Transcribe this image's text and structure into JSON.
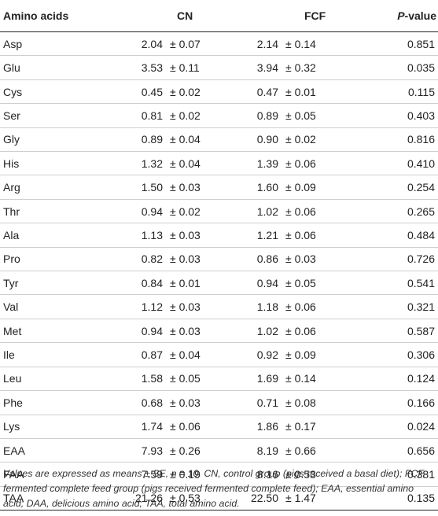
{
  "headers": {
    "amino": "Amino acids",
    "cn": "CN",
    "fcf": "FCF",
    "p_italic": "P",
    "p_rest": "-value"
  },
  "rows": [
    {
      "name": "Asp",
      "cn_mean": "2.04",
      "cn_se": "± 0.07",
      "fcf_mean": "2.14",
      "fcf_se": "± 0.14",
      "p": "0.851"
    },
    {
      "name": "Glu",
      "cn_mean": "3.53",
      "cn_se": "± 0.11",
      "fcf_mean": "3.94",
      "fcf_se": "± 0.32",
      "p": "0.035"
    },
    {
      "name": "Cys",
      "cn_mean": "0.45",
      "cn_se": "± 0.02",
      "fcf_mean": "0.47",
      "fcf_se": "± 0.01",
      "p": "0.115"
    },
    {
      "name": "Ser",
      "cn_mean": "0.81",
      "cn_se": "± 0.02",
      "fcf_mean": "0.89",
      "fcf_se": "± 0.05",
      "p": "0.403"
    },
    {
      "name": "Gly",
      "cn_mean": "0.89",
      "cn_se": "± 0.04",
      "fcf_mean": "0.90",
      "fcf_se": "± 0.02",
      "p": "0.816"
    },
    {
      "name": "His",
      "cn_mean": "1.32",
      "cn_se": "± 0.04",
      "fcf_mean": "1.39",
      "fcf_se": "± 0.06",
      "p": "0.410"
    },
    {
      "name": "Arg",
      "cn_mean": "1.50",
      "cn_se": "± 0.03",
      "fcf_mean": "1.60",
      "fcf_se": "± 0.09",
      "p": "0.254"
    },
    {
      "name": "Thr",
      "cn_mean": "0.94",
      "cn_se": "± 0.02",
      "fcf_mean": "1.02",
      "fcf_se": "± 0.06",
      "p": "0.265"
    },
    {
      "name": "Ala",
      "cn_mean": "1.13",
      "cn_se": "± 0.03",
      "fcf_mean": "1.21",
      "fcf_se": "± 0.06",
      "p": "0.484"
    },
    {
      "name": "Pro",
      "cn_mean": "0.82",
      "cn_se": "± 0.03",
      "fcf_mean": "0.86",
      "fcf_se": "± 0.03",
      "p": "0.726"
    },
    {
      "name": "Tyr",
      "cn_mean": "0.84",
      "cn_se": "± 0.01",
      "fcf_mean": "0.94",
      "fcf_se": "± 0.05",
      "p": "0.541"
    },
    {
      "name": "Val",
      "cn_mean": "1.12",
      "cn_se": "± 0.03",
      "fcf_mean": "1.18",
      "fcf_se": "± 0.06",
      "p": "0.321"
    },
    {
      "name": "Met",
      "cn_mean": "0.94",
      "cn_se": "± 0.03",
      "fcf_mean": "1.02",
      "fcf_se": "± 0.06",
      "p": "0.587"
    },
    {
      "name": "Ile",
      "cn_mean": "0.87",
      "cn_se": "± 0.04",
      "fcf_mean": "0.92",
      "fcf_se": "± 0.09",
      "p": "0.306"
    },
    {
      "name": "Leu",
      "cn_mean": "1.58",
      "cn_se": "± 0.05",
      "fcf_mean": "1.69",
      "fcf_se": "± 0.14",
      "p": "0.124"
    },
    {
      "name": "Phe",
      "cn_mean": "0.68",
      "cn_se": "± 0.03",
      "fcf_mean": "0.71",
      "fcf_se": "± 0.08",
      "p": "0.166"
    },
    {
      "name": "Lys",
      "cn_mean": "1.74",
      "cn_se": "± 0.06",
      "fcf_mean": "1.86",
      "fcf_se": "± 0.17",
      "p": "0.024"
    },
    {
      "name": "EAA",
      "cn_mean": "7.93",
      "cn_se": "± 0.26",
      "fcf_mean": "8.19",
      "fcf_se": "± 0.66",
      "p": "0.656"
    },
    {
      "name": "FAA",
      "cn_mean": "7.59",
      "cn_se": "± 0.19",
      "fcf_mean": "8.16",
      "fcf_se": "± 0.53",
      "p": "0.381"
    },
    {
      "name": "TAA",
      "cn_mean": "21.26",
      "cn_se": "± 0.53",
      "fcf_mean": "22.50",
      "fcf_se": "± 1.47",
      "p": "0.135"
    }
  ],
  "footnote": "Values are expressed as means ± SE, n = 10. CN, control group (pigs received a basal diet); FCF, fermented complete feed group (pigs received fermented complete feed); EAA, essential amino acid; DAA, delicious amino acid; TAA, total amino acid."
}
